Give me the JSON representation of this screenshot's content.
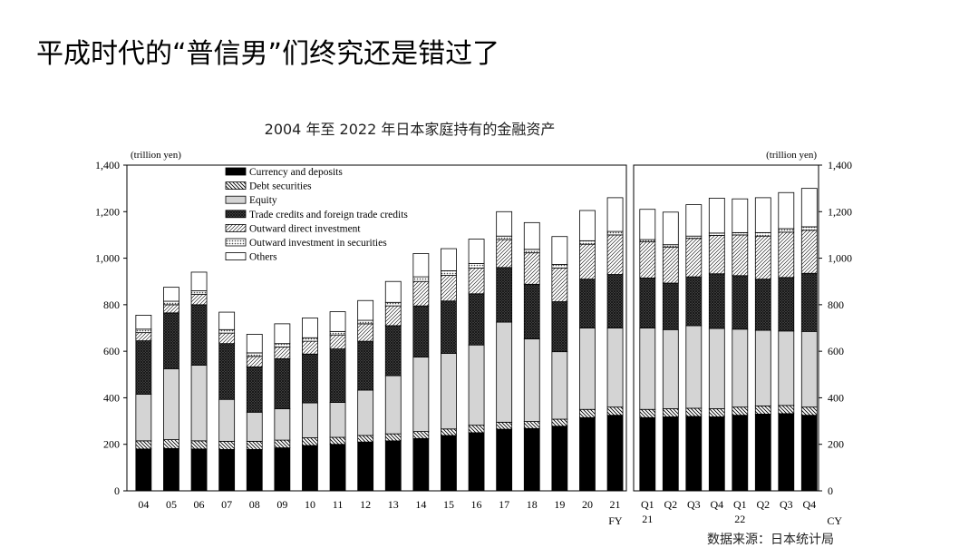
{
  "slide": {
    "title": "平成时代的“普信男”们终究还是错过了",
    "chart_title": "2004 年至 2022 年日本家庭持有的金融资产",
    "source": "数据来源：日本统计局"
  },
  "chart_data": [
    {
      "type": "bar",
      "stacked": true,
      "ylabel": "(trillion yen)",
      "xlabel": "FY",
      "ylim": [
        0,
        1400
      ],
      "yticks": [
        0,
        200,
        400,
        600,
        800,
        1000,
        1200,
        1400
      ],
      "ytick_labels": [
        "0",
        "200",
        "400",
        "600",
        "800",
        "1,000",
        "1,200",
        "1,400"
      ],
      "legend_position": "top-left",
      "categories": [
        "04",
        "05",
        "06",
        "07",
        "08",
        "09",
        "10",
        "11",
        "12",
        "13",
        "14",
        "15",
        "16",
        "17",
        "18",
        "19",
        "20",
        "21"
      ],
      "series": [
        {
          "name": "Currency and deposits",
          "fill": "solid-black",
          "values": [
            180,
            182,
            180,
            178,
            178,
            185,
            195,
            200,
            210,
            215,
            225,
            238,
            250,
            265,
            268,
            278,
            315,
            325
          ]
        },
        {
          "name": "Debt securities",
          "fill": "back-diagonal-hatch",
          "values": [
            35,
            38,
            35,
            35,
            35,
            33,
            33,
            30,
            28,
            30,
            30,
            28,
            32,
            30,
            30,
            30,
            35,
            35
          ]
        },
        {
          "name": "Equity",
          "fill": "light-gray",
          "values": [
            200,
            305,
            325,
            180,
            125,
            135,
            150,
            150,
            195,
            250,
            320,
            325,
            345,
            430,
            355,
            290,
            350,
            340
          ]
        },
        {
          "name": "Trade credits and foreign trade credits",
          "fill": "dense-crosshatch",
          "values": [
            230,
            240,
            260,
            240,
            195,
            215,
            210,
            230,
            210,
            215,
            220,
            225,
            220,
            235,
            235,
            215,
            210,
            230
          ]
        },
        {
          "name": "Outward direct investment",
          "fill": "forward-diagonal-hatch",
          "values": [
            35,
            35,
            45,
            45,
            45,
            50,
            55,
            60,
            75,
            85,
            105,
            110,
            110,
            120,
            135,
            145,
            150,
            170
          ]
        },
        {
          "name": "Outward investment in securities",
          "fill": "dotted",
          "values": [
            15,
            15,
            15,
            15,
            15,
            15,
            15,
            15,
            15,
            15,
            20,
            20,
            20,
            15,
            15,
            15,
            15,
            15
          ]
        },
        {
          "name": "Others",
          "fill": "white",
          "values": [
            60,
            60,
            80,
            75,
            80,
            85,
            85,
            85,
            85,
            90,
            100,
            95,
            105,
            105,
            115,
            120,
            130,
            145
          ]
        }
      ]
    },
    {
      "type": "bar",
      "stacked": true,
      "ylabel": "(trillion yen)",
      "xlabel": "CY",
      "ylim": [
        0,
        1400
      ],
      "yticks": [
        0,
        200,
        400,
        600,
        800,
        1000,
        1200,
        1400
      ],
      "ytick_labels": [
        "0",
        "200",
        "400",
        "600",
        "800",
        "1,000",
        "1,200",
        "1,400"
      ],
      "categories": [
        "Q1",
        "Q2",
        "Q3",
        "Q4",
        "Q1",
        "Q2",
        "Q3",
        "Q4"
      ],
      "year_labels": [
        {
          "index": 0,
          "label": "21"
        },
        {
          "index": 4,
          "label": "22"
        }
      ],
      "series": [
        {
          "name": "Currency and deposits",
          "values": [
            315,
            318,
            320,
            318,
            325,
            330,
            332,
            325
          ]
        },
        {
          "name": "Debt securities",
          "values": [
            35,
            35,
            35,
            35,
            35,
            35,
            35,
            35
          ]
        },
        {
          "name": "Equity",
          "values": [
            350,
            340,
            355,
            345,
            335,
            325,
            320,
            325
          ]
        },
        {
          "name": "Trade credits and foreign trade credits",
          "values": [
            215,
            200,
            210,
            235,
            230,
            220,
            230,
            250
          ]
        },
        {
          "name": "Outward direct investment",
          "values": [
            155,
            155,
            165,
            165,
            175,
            185,
            195,
            185
          ]
        },
        {
          "name": "Outward investment in securities",
          "values": [
            10,
            10,
            10,
            10,
            10,
            15,
            15,
            15
          ]
        },
        {
          "name": "Others",
          "values": [
            130,
            140,
            135,
            150,
            145,
            150,
            155,
            165
          ]
        }
      ]
    }
  ]
}
